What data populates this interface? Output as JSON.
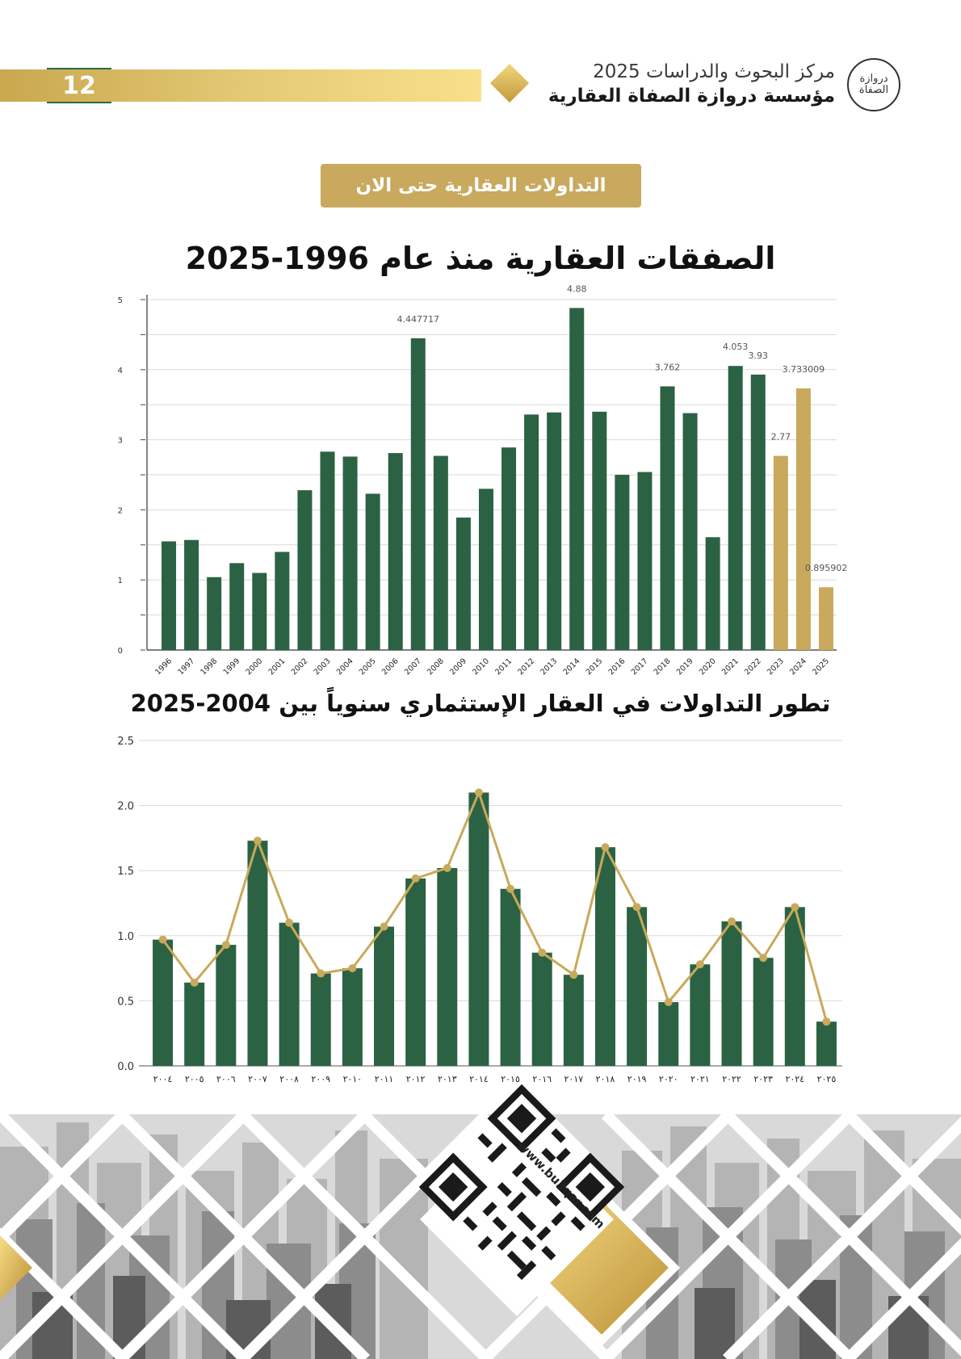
{
  "header": {
    "page_number": "12",
    "org_line1": "مركز البحوث والدراسات 2025",
    "org_line2": "مؤسسة دروازة الصفاة العقارية",
    "logo_text": "دروازة الصفاة"
  },
  "section_banner": "التداولات العقارية حتى الان",
  "footer": {
    "url": "www.bu3qar.com"
  },
  "colors": {
    "green": "#2b6243",
    "gold": "#c9a95b",
    "grid": "#d9d9d9"
  },
  "chart_data": [
    {
      "type": "bar",
      "title": "الصفقات العقارية منذ عام 1996-2025",
      "categories": [
        "1996",
        "1997",
        "1998",
        "1999",
        "2000",
        "2001",
        "2002",
        "2003",
        "2004",
        "2005",
        "2006",
        "2007",
        "2008",
        "2009",
        "2010",
        "2011",
        "2012",
        "2013",
        "2014",
        "2015",
        "2016",
        "2017",
        "2018",
        "2019",
        "2020",
        "2021",
        "2022",
        "2023",
        "2024",
        "2025"
      ],
      "values": [
        1.55,
        1.57,
        1.04,
        1.24,
        1.1,
        1.4,
        2.28,
        2.83,
        2.76,
        2.23,
        2.81,
        4.447717,
        2.77,
        1.89,
        2.3,
        2.89,
        3.36,
        3.39,
        4.88,
        3.4,
        2.5,
        2.54,
        3.762,
        3.38,
        1.61,
        4.053,
        3.93,
        2.77,
        3.733009,
        0.895902
      ],
      "value_labels": [
        "",
        "",
        "",
        "",
        "",
        "",
        "",
        "",
        "",
        "",
        "",
        "4.447717",
        "",
        "",
        "",
        "",
        "",
        "",
        "4.88",
        "",
        "",
        "",
        "3.762",
        "",
        "",
        "4.053",
        "3.93",
        "2.77",
        "3.733009",
        "0.895902"
      ],
      "highlight_categories": [
        "2023",
        "2024",
        "2025"
      ],
      "y_ticks": [
        "0",
        "1",
        "2",
        "3",
        "4",
        "5"
      ],
      "ylim": [
        0,
        5
      ],
      "xlabel": "",
      "ylabel": "",
      "grid": true
    },
    {
      "type": "bar",
      "title": "تطور التداولات في العقار الإستثماري سنوياً بين 2004-2025",
      "categories": [
        "٢٠٠٤",
        "٢٠٠٥",
        "٢٠٠٦",
        "٢٠٠٧",
        "٢٠٠٨",
        "٢٠٠٩",
        "٢٠١٠",
        "٢٠١١",
        "٢٠١٢",
        "٢٠١٣",
        "٢٠١٤",
        "٢٠١٥",
        "٢٠١٦",
        "٢٠١٧",
        "٢٠١٨",
        "٢٠١٩",
        "٢٠٢٠",
        "٢٠٢١",
        "٢٠٢٢",
        "٢٠٢٣",
        "٢٠٢٤",
        "٢٠٢٥"
      ],
      "values": [
        0.97,
        0.64,
        0.93,
        1.73,
        1.1,
        0.71,
        0.75,
        1.07,
        1.44,
        1.52,
        2.1,
        1.36,
        0.87,
        0.7,
        1.68,
        1.22,
        0.49,
        0.78,
        1.11,
        0.83,
        1.22,
        0.34
      ],
      "line_values": [
        0.97,
        0.64,
        0.93,
        1.73,
        1.1,
        0.71,
        0.75,
        1.07,
        1.44,
        1.52,
        2.1,
        1.36,
        0.87,
        0.7,
        1.68,
        1.22,
        0.49,
        0.78,
        1.11,
        0.83,
        1.22,
        0.34
      ],
      "y_ticks": [
        "0.0",
        "0.5",
        "1.0",
        "1.5",
        "2.0",
        "2.5"
      ],
      "ylim": [
        0,
        2.5
      ],
      "xlabel": "",
      "ylabel": "",
      "grid": true
    }
  ]
}
